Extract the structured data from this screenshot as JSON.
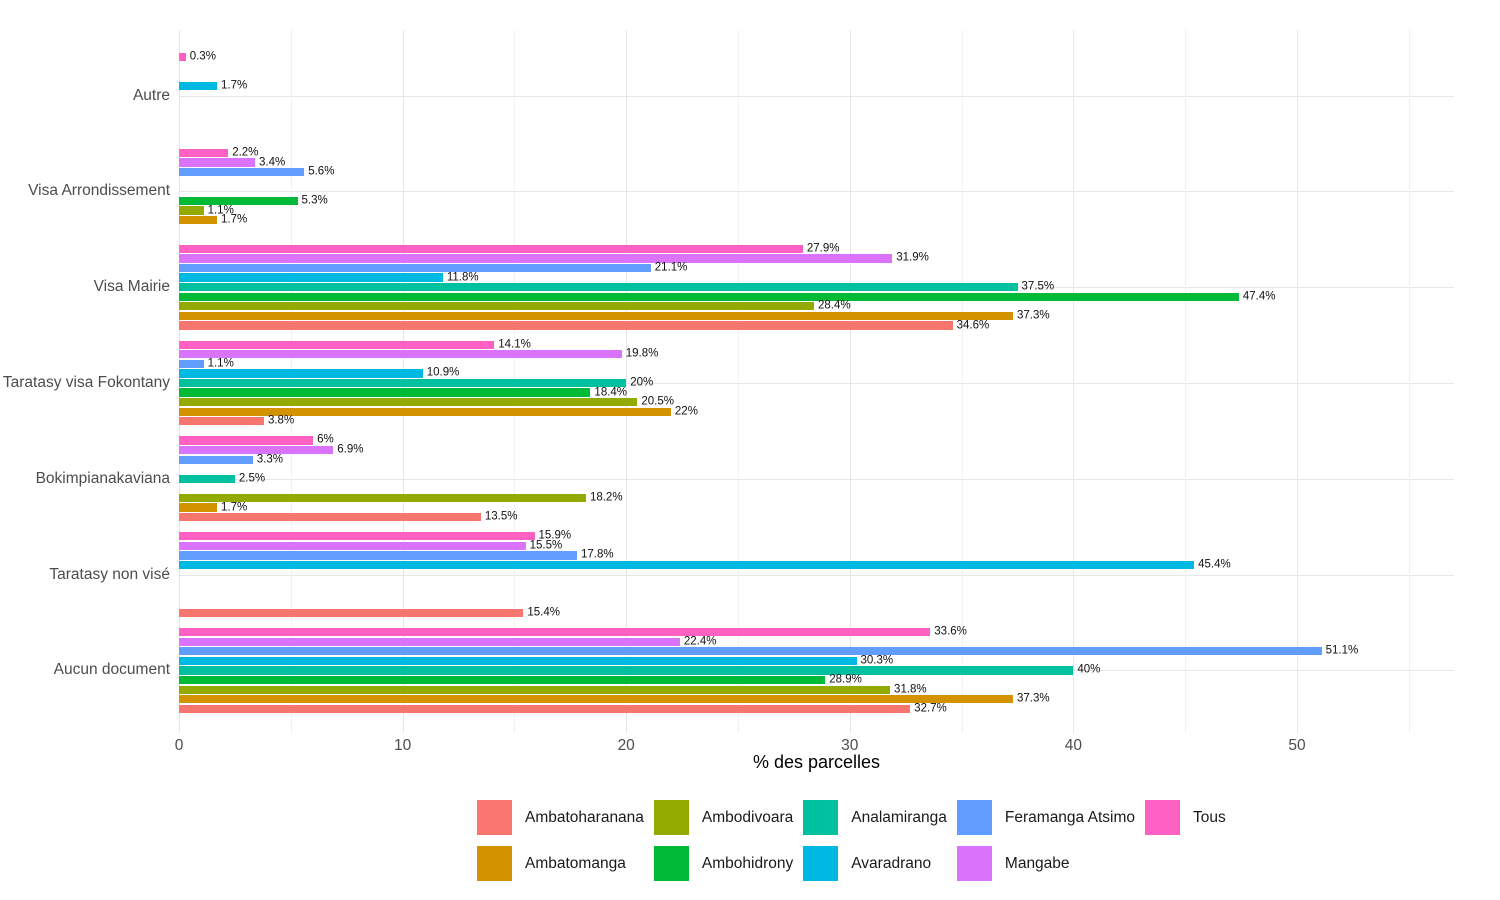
{
  "chart_data": {
    "type": "bar",
    "orientation": "horizontal",
    "xlabel": "% des parcelles",
    "value_label_format": "{value}%",
    "xlim": [
      0,
      57
    ],
    "x_major_ticks": [
      0,
      10,
      20,
      30,
      40,
      50
    ],
    "x_minor_ticks": [
      5,
      15,
      25,
      35,
      45,
      55
    ],
    "grid": "on",
    "legend_position": "bottom",
    "categories": [
      "Autre",
      "Visa Arrondissement",
      "Visa Mairie",
      "Taratasy visa Fokontany",
      "Bokimpianakaviana",
      "Taratasy non visé",
      "Aucun document"
    ],
    "series_order_top_to_bottom": [
      "Tous",
      "Mangabe",
      "Feramanga Atsimo",
      "Avaradrano",
      "Analamiranga",
      "Ambohidrony",
      "Ambodivoara",
      "Ambatomanga",
      "Ambatoharanana"
    ],
    "series": [
      {
        "name": "Ambatoharanana",
        "color": "#F8766D",
        "values": [
          null,
          null,
          34.6,
          3.8,
          13.5,
          15.4,
          32.7
        ]
      },
      {
        "name": "Ambatomanga",
        "color": "#D39200",
        "values": [
          null,
          1.7,
          37.3,
          22,
          1.7,
          null,
          37.3
        ]
      },
      {
        "name": "Ambodivoara",
        "color": "#93AA00",
        "values": [
          null,
          1.1,
          28.4,
          20.5,
          18.2,
          null,
          31.8
        ]
      },
      {
        "name": "Ambohidrony",
        "color": "#00BA38",
        "values": [
          null,
          5.3,
          47.4,
          18.4,
          null,
          null,
          28.9
        ]
      },
      {
        "name": "Analamiranga",
        "color": "#00C19F",
        "values": [
          null,
          null,
          37.5,
          20,
          2.5,
          null,
          40
        ]
      },
      {
        "name": "Avaradrano",
        "color": "#00B9E3",
        "values": [
          1.7,
          null,
          11.8,
          10.9,
          null,
          45.4,
          30.3
        ]
      },
      {
        "name": "Feramanga Atsimo",
        "color": "#619CFF",
        "values": [
          null,
          5.6,
          21.1,
          1.1,
          3.3,
          17.8,
          51.1
        ]
      },
      {
        "name": "Mangabe",
        "color": "#DB72FB",
        "values": [
          null,
          3.4,
          31.9,
          19.8,
          6.9,
          15.5,
          22.4
        ]
      },
      {
        "name": "Tous",
        "color": "#FF61C3",
        "values": [
          0.3,
          2.2,
          27.9,
          14.1,
          6,
          15.9,
          33.6
        ]
      }
    ],
    "legend_columns": [
      [
        "Ambatoharanana",
        "Ambatomanga"
      ],
      [
        "Ambodivoara",
        "Ambohidrony"
      ],
      [
        "Analamiranga",
        "Avaradrano"
      ],
      [
        "Feramanga Atsimo",
        "Mangabe"
      ],
      [
        "Tous"
      ]
    ]
  }
}
